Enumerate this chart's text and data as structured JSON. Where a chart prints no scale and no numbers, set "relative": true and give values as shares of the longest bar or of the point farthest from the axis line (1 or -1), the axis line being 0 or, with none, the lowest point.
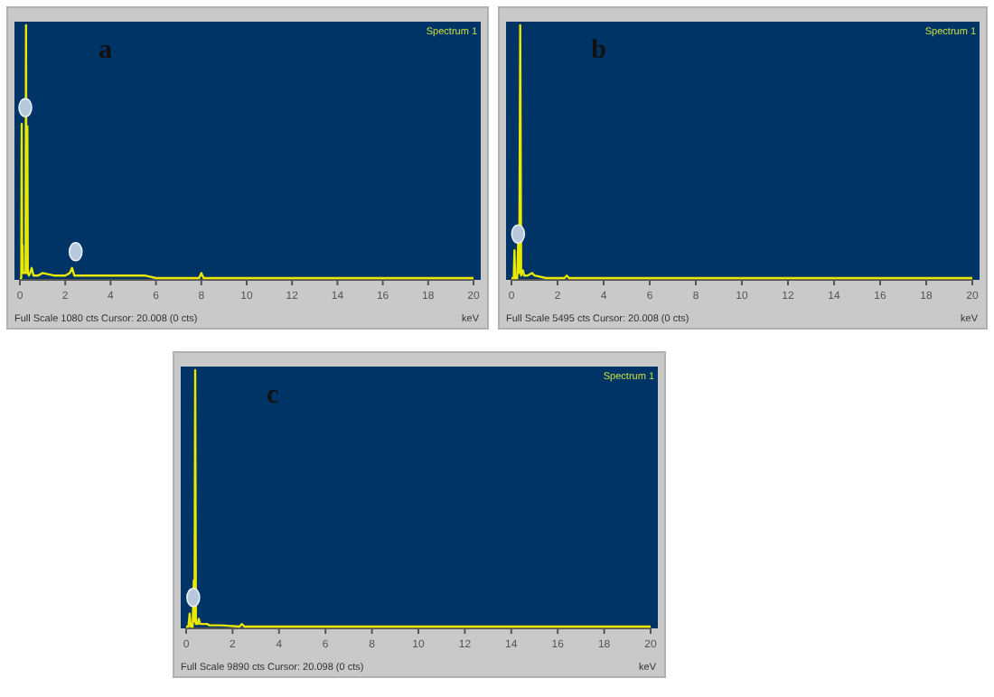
{
  "chart_data": [
    {
      "type": "line",
      "title": "a",
      "xlabel": "keV",
      "relative": true,
      "xlim": [
        0,
        20
      ],
      "xticks": [
        0,
        2,
        4,
        6,
        8,
        10,
        12,
        14,
        16,
        18,
        20
      ],
      "annotations": [
        "Spectrum 1",
        "Full Scale 1080 cts Cursor: 20.008  (0 cts)"
      ],
      "series": [
        {
          "color": "#e8e800",
          "x": [
            0,
            0.06,
            0.08,
            0.1,
            0.12,
            0.14,
            0.2,
            0.25,
            0.27,
            0.29,
            0.31,
            0.33,
            0.35,
            0.4,
            0.45,
            0.52,
            0.6,
            0.8,
            1.0,
            1.5,
            2.0,
            2.2,
            2.3,
            2.4,
            3.0,
            4.0,
            5.0,
            5.5,
            6.0,
            7.0,
            7.9,
            8.0,
            8.1,
            9.0,
            20
          ],
          "values": [
            0,
            0,
            0.61,
            0.05,
            0.13,
            0.02,
            0.02,
            0.02,
            1,
            0.02,
            0.02,
            0.6,
            0.02,
            0.01,
            0.02,
            0.04,
            0.01,
            0.01,
            0.02,
            0.01,
            0.01,
            0.02,
            0.04,
            0.01,
            0.01,
            0.01,
            0.01,
            0.01,
            0,
            0,
            0,
            0.02,
            0,
            0,
            0
          ]
        }
      ]
    },
    {
      "type": "line",
      "title": "b",
      "xlabel": "keV",
      "relative": true,
      "xlim": [
        0,
        20
      ],
      "xticks": [
        0,
        2,
        4,
        6,
        8,
        10,
        12,
        14,
        16,
        18,
        20
      ],
      "annotations": [
        "Spectrum 1",
        "Full Scale 5495 cts Cursor: 20.008  (0 cts)"
      ],
      "series": [
        {
          "color": "#e8e800",
          "x": [
            0,
            0.1,
            0.13,
            0.16,
            0.25,
            0.3,
            0.34,
            0.38,
            0.42,
            0.5,
            0.55,
            0.7,
            0.9,
            1.0,
            1.5,
            2.3,
            2.4,
            2.5,
            20
          ],
          "values": [
            0,
            0,
            0.11,
            0,
            0,
            0.17,
            0.02,
            1,
            0.01,
            0.03,
            0.01,
            0.01,
            0.02,
            0.01,
            0,
            0,
            0.01,
            0,
            0
          ]
        }
      ]
    },
    {
      "type": "line",
      "title": "c",
      "xlabel": "keV",
      "relative": true,
      "xlim": [
        0,
        20
      ],
      "xticks": [
        0,
        2,
        4,
        6,
        8,
        10,
        12,
        14,
        16,
        18,
        20
      ],
      "annotations": [
        "Spectrum 1",
        "Full Scale 9890 cts Cursor: 20.098  (0 cts)"
      ],
      "series": [
        {
          "color": "#e8e800",
          "x": [
            0,
            0.1,
            0.15,
            0.2,
            0.28,
            0.33,
            0.36,
            0.39,
            0.42,
            0.5,
            0.54,
            0.6,
            0.9,
            1.0,
            1.5,
            2.3,
            2.4,
            2.5,
            20
          ],
          "values": [
            0,
            0,
            0.05,
            0,
            0,
            0.18,
            0.02,
            1,
            0.01,
            0.01,
            0.03,
            0.01,
            0.01,
            0.005,
            0.005,
            0,
            0.01,
            0,
            0
          ]
        }
      ]
    }
  ]
}
